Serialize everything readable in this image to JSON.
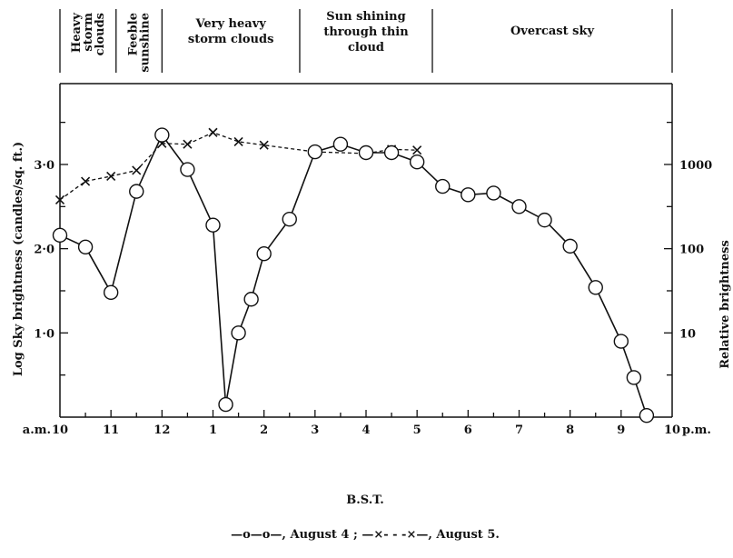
{
  "chart_data": {
    "type": "line",
    "title": "",
    "xlabel": "B.S.T.",
    "ylabel": "Log Sky brightness (candles/sq. ft.)",
    "y2label": "Relative brightness",
    "xlim": [
      10,
      22
    ],
    "ylim": [
      0,
      3.96
    ],
    "x_ticks": [
      {
        "x": 10,
        "label": "10",
        "prefix": "a.m."
      },
      {
        "x": 11,
        "label": "11"
      },
      {
        "x": 12,
        "label": "12"
      },
      {
        "x": 13,
        "label": "1"
      },
      {
        "x": 14,
        "label": "2"
      },
      {
        "x": 15,
        "label": "3"
      },
      {
        "x": 16,
        "label": "4"
      },
      {
        "x": 17,
        "label": "5"
      },
      {
        "x": 18,
        "label": "6"
      },
      {
        "x": 19,
        "label": "7"
      },
      {
        "x": 20,
        "label": "8"
      },
      {
        "x": 21,
        "label": "9"
      },
      {
        "x": 22,
        "label": "10",
        "suffix": "p.m."
      }
    ],
    "y_ticks": [
      {
        "y": 1.0,
        "label": "1·0"
      },
      {
        "y": 2.0,
        "label": "2·0"
      },
      {
        "y": 3.0,
        "label": "3·0"
      }
    ],
    "y2_ticks": [
      {
        "y": 1.0,
        "label": "10"
      },
      {
        "y": 2.0,
        "label": "100"
      },
      {
        "y": 3.0,
        "label": "1000"
      }
    ],
    "sky_bands": [
      {
        "from": 10,
        "to": 11.1,
        "lines": [
          "Heavy",
          "storm",
          "clouds"
        ],
        "vertical": true
      },
      {
        "from": 11.1,
        "to": 12,
        "lines": [
          "Feeble",
          "sunshine"
        ],
        "vertical": true
      },
      {
        "from": 12,
        "to": 14.7,
        "lines": [
          "Very heavy",
          "storm clouds"
        ],
        "vertical": false
      },
      {
        "from": 14.7,
        "to": 17.3,
        "lines": [
          "Sun shining",
          "through thin",
          "cloud"
        ],
        "vertical": false
      },
      {
        "from": 17.3,
        "to": 22,
        "lines": [
          "Overcast  sky"
        ],
        "vertical": false
      }
    ],
    "series": [
      {
        "name": "August 4",
        "marker": "circle",
        "linestyle": "solid",
        "x": [
          10,
          10.5,
          11,
          11.5,
          12,
          12.5,
          13,
          13.25,
          13.5,
          13.75,
          14,
          14.5,
          15,
          15.5,
          16,
          16.5,
          17,
          17.5,
          18,
          18.5,
          19,
          19.5,
          20,
          20.5,
          21,
          21.25,
          21.5
        ],
        "y": [
          2.16,
          2.02,
          1.48,
          2.68,
          3.35,
          2.94,
          2.28,
          0.15,
          1.0,
          1.4,
          1.94,
          2.35,
          3.15,
          3.24,
          3.14,
          3.14,
          3.03,
          2.74,
          2.64,
          2.66,
          2.5,
          2.34,
          2.03,
          1.54,
          0.9,
          0.47,
          0.02
        ]
      },
      {
        "name": "August 5",
        "marker": "x",
        "linestyle": "dashed",
        "x": [
          10,
          10.5,
          11,
          11.5,
          12,
          12.5,
          13,
          13.5,
          14,
          15,
          16,
          16.5,
          17
        ],
        "y": [
          2.58,
          2.8,
          2.86,
          2.93,
          3.25,
          3.24,
          3.38,
          3.27,
          3.23,
          3.15,
          3.13,
          3.18,
          3.17
        ]
      }
    ],
    "legend": {
      "placement": "bottom",
      "text": "—o—o—, August 4 ;  —×- - -×—, August 5."
    }
  }
}
